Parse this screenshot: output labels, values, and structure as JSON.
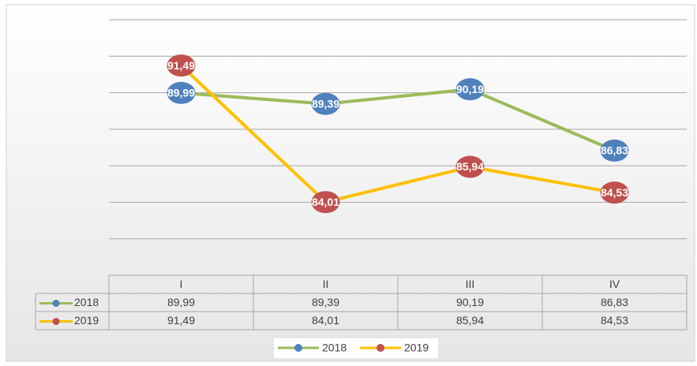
{
  "chart_data": {
    "type": "line",
    "categories": [
      "I",
      "II",
      "III",
      "IV"
    ],
    "series": [
      {
        "name": "2018",
        "color": "#9bbb59",
        "marker_color": "#4f81bd",
        "values": [
          89.99,
          89.39,
          90.19,
          86.83
        ],
        "value_labels": [
          "89,99",
          "89,39",
          "90,19",
          "86,83"
        ]
      },
      {
        "name": "2019",
        "color": "#ffc000",
        "marker_color": "#c0504d",
        "values": [
          91.49,
          84.01,
          85.94,
          84.53
        ],
        "value_labels": [
          "91,49",
          "84,01",
          "85,94",
          "84,53"
        ]
      }
    ],
    "ylim": [
      80,
      94
    ],
    "yticks": [
      80,
      82,
      84,
      86,
      88,
      90,
      92,
      94
    ],
    "grid": true,
    "legend": "bottom",
    "data_table": true
  }
}
